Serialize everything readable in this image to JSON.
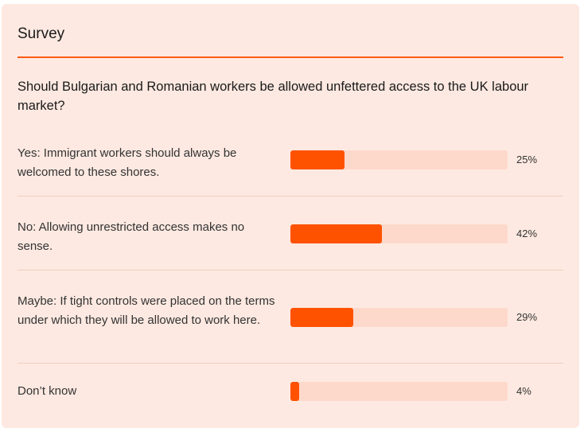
{
  "survey": {
    "title": "Survey",
    "question": "Should Bulgarian and Romanian workers be allowed unfettered access to the UK labour market?",
    "accent_color": "#ff5200",
    "background_color": "#fde9e1",
    "options": [
      {
        "label": "Yes: Immigrant workers should always be welcomed to these shores.",
        "percent_label": "25%",
        "percent": 25
      },
      {
        "label": "No: Allowing unrestricted access makes no sense.",
        "percent_label": "42%",
        "percent": 42
      },
      {
        "label": "Maybe: If tight controls were placed on the terms under which they will be allowed to work here.",
        "percent_label": "29%",
        "percent": 29
      },
      {
        "label": "Don’t know",
        "percent_label": "4%",
        "percent": 4
      }
    ]
  }
}
